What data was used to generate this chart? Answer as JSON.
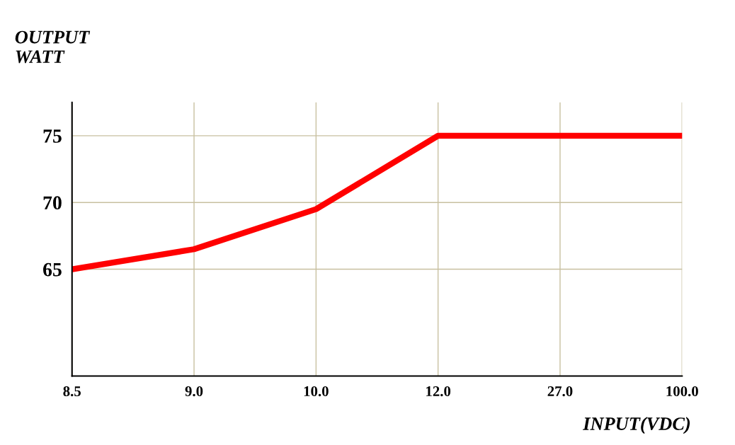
{
  "chart_data": {
    "type": "line",
    "xlabel": "INPUT(VDC)",
    "ylabel": "OUTPUT\nWATT",
    "categories": [
      "8.5",
      "9.0",
      "10.0",
      "12.0",
      "27.0",
      "100.0"
    ],
    "series": [
      {
        "color": "#ff0000",
        "values": [
          65,
          66.5,
          69.5,
          75,
          75,
          75
        ]
      }
    ],
    "ylim": [
      57,
      77.5
    ],
    "yticks": [
      65,
      70,
      75
    ],
    "grid": true,
    "marker": "none",
    "line_style": "solid"
  }
}
